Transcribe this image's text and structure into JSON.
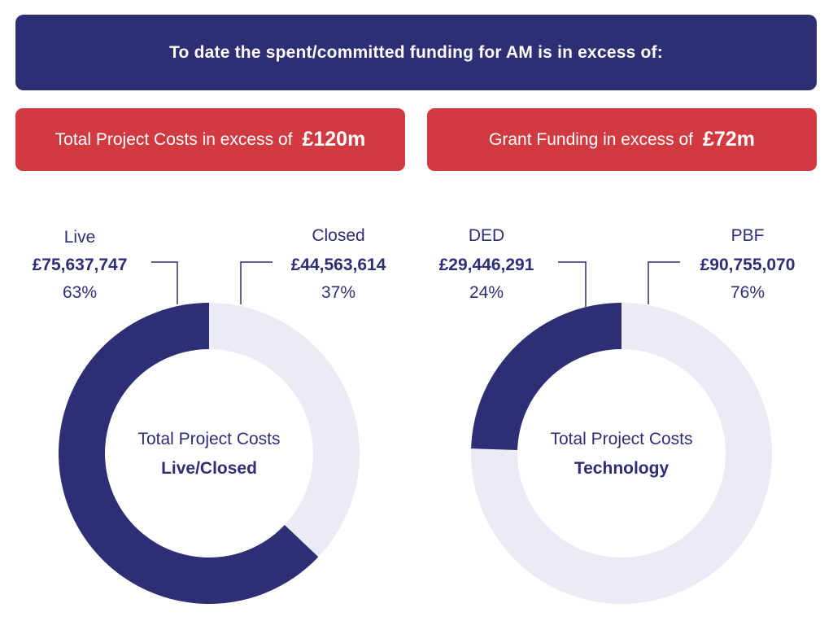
{
  "banner": {
    "text": "To date the spent/committed funding for AM is in excess of:"
  },
  "pills": [
    {
      "label": "Total Project Costs in excess of",
      "amount": "£120m"
    },
    {
      "label": "Grant Funding in excess of",
      "amount": "£72m"
    }
  ],
  "colors": {
    "dark": "#2e2e75",
    "light": "#ebebf5",
    "red": "#d13a40"
  },
  "chart_data": [
    {
      "type": "pie",
      "title": "Total Project Costs",
      "subtitle": "Live/Closed",
      "segments": [
        {
          "name": "Live",
          "value": 75637747,
          "value_label": "£75,637,747",
          "percent": 63,
          "percent_label": "63%"
        },
        {
          "name": "Closed",
          "value": 44563614,
          "value_label": "£44,563,614",
          "percent": 37,
          "percent_label": "37%"
        }
      ]
    },
    {
      "type": "pie",
      "title": "Total Project Costs",
      "subtitle": "Technology",
      "segments": [
        {
          "name": "DED",
          "value": 29446291,
          "value_label": "£29,446,291",
          "percent": 24,
          "percent_label": "24%"
        },
        {
          "name": "PBF",
          "value": 90755070,
          "value_label": "£90,755,070",
          "percent": 76,
          "percent_label": "76%"
        }
      ]
    }
  ]
}
